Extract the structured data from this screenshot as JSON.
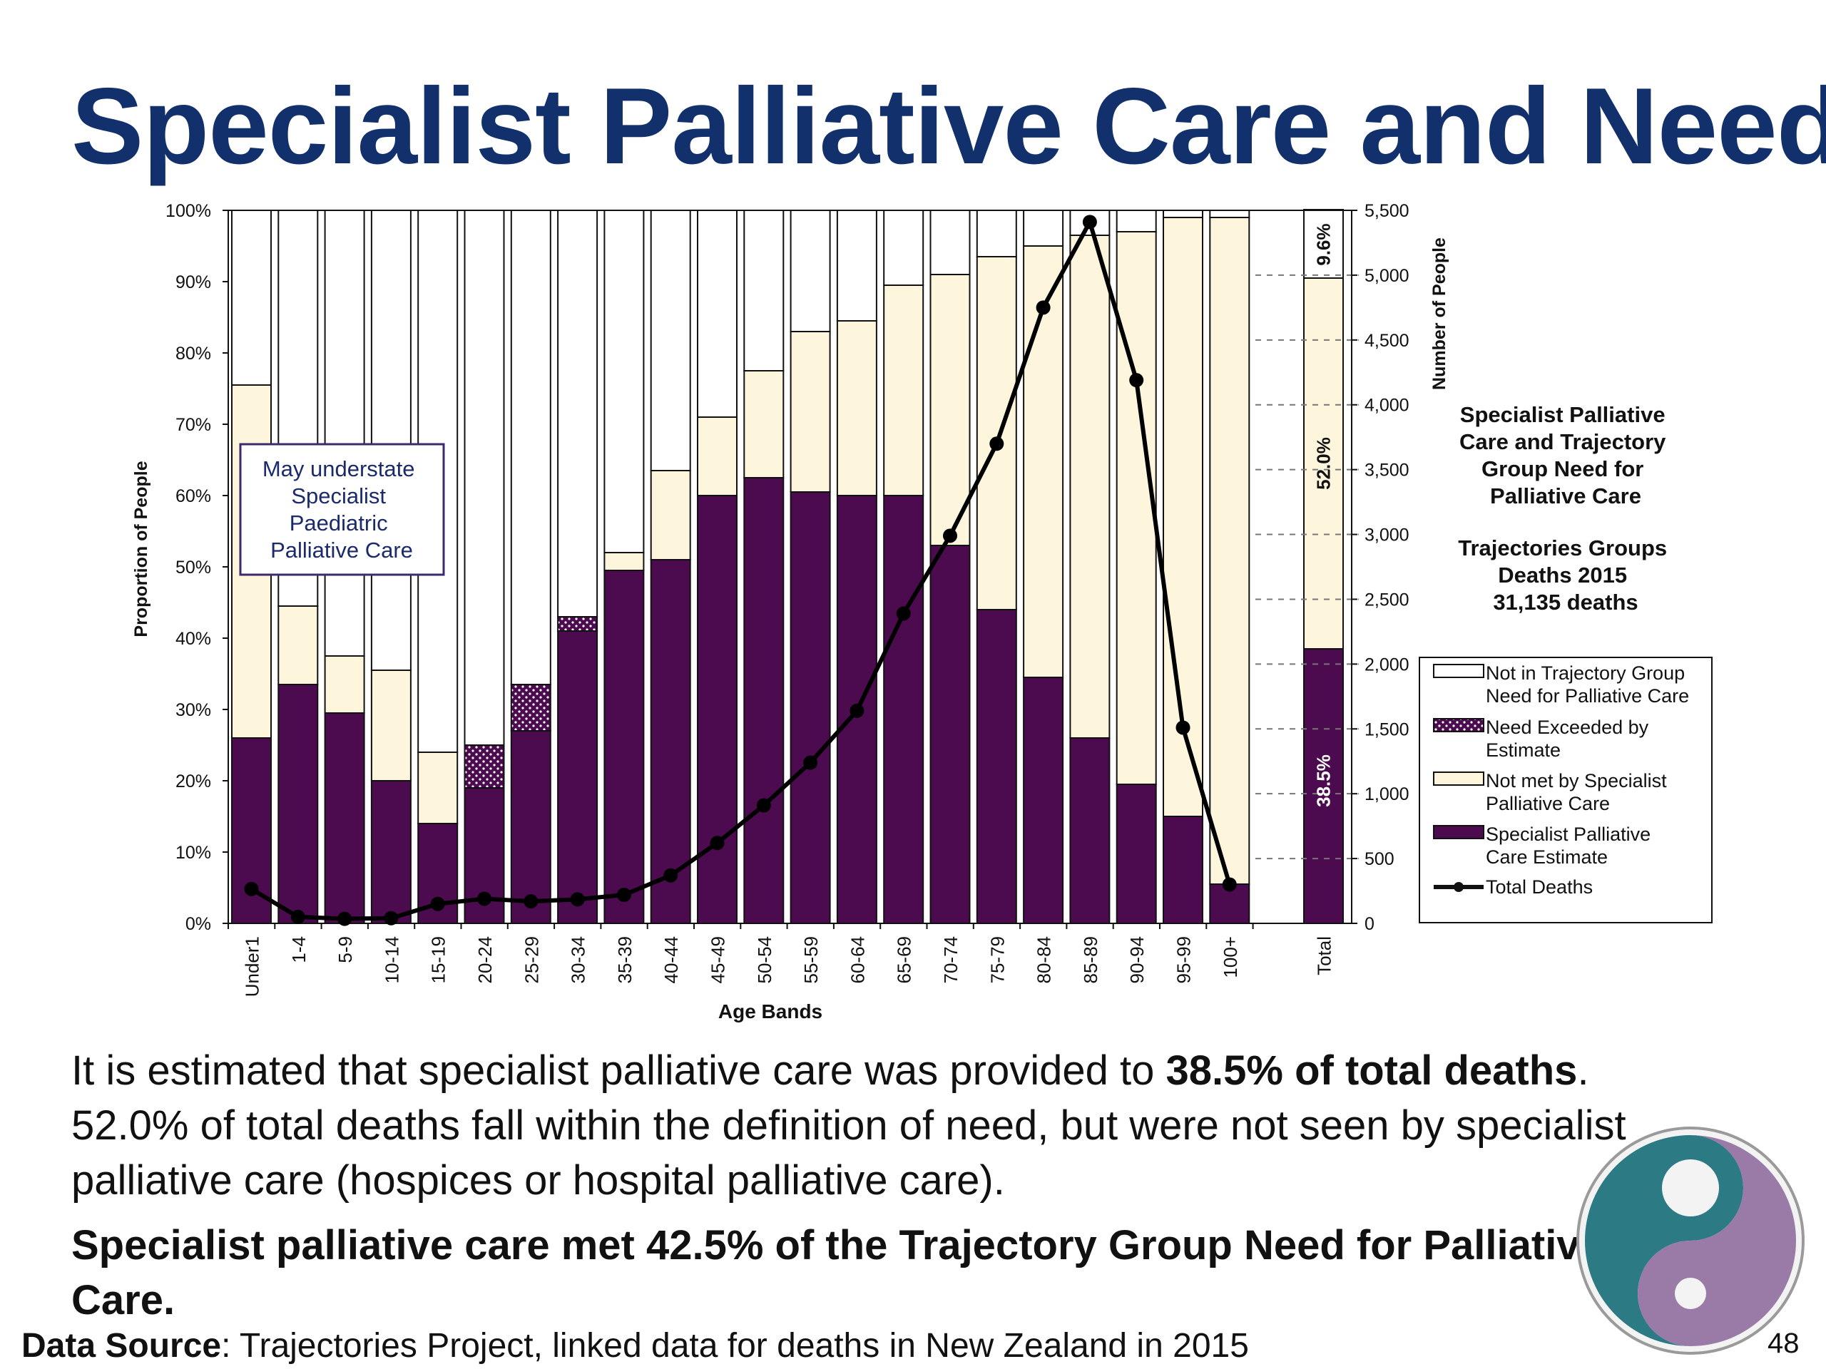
{
  "slide": {
    "title": "Specialist Palliative Care and Need",
    "para1_a": "It is estimated that specialist palliative care was provided to ",
    "para1_b": "38.5% of total deaths",
    "para1_c": ". 52.0% of total deaths fall within the definition of need, but were not seen by specialist palliative care (hospices or hospital palliative care).",
    "para2_a": "Specialist palliative care met 42.5% of the Trajectory Group Need for Palliative Care",
    "para2_b": ".",
    "source_label": "Data Source",
    "source_text": ": Trajectories Project, linked data for deaths in New Zealand in 2015",
    "page_number": "48"
  },
  "chart_data": {
    "type": "bar",
    "stacked": true,
    "xlabel": "Age Bands",
    "ylabel": "Proportion of People",
    "y2label": "Number of People",
    "ylim": [
      0,
      100
    ],
    "y2lim": [
      0,
      5500
    ],
    "yticks": [
      "0%",
      "10%",
      "20%",
      "30%",
      "40%",
      "50%",
      "60%",
      "70%",
      "80%",
      "90%",
      "100%"
    ],
    "y2ticks": [
      "0",
      "500",
      "1,000",
      "1,500",
      "2,000",
      "2,500",
      "3,000",
      "3,500",
      "4,000",
      "4,500",
      "5,000",
      "5,500"
    ],
    "categories": [
      "Under1",
      "1-4",
      "5-9",
      "10-14",
      "15-19",
      "20-24",
      "25-29",
      "30-34",
      "35-39",
      "40-44",
      "45-49",
      "50-54",
      "55-59",
      "60-64",
      "65-69",
      "70-74",
      "75-79",
      "80-84",
      "85-89",
      "90-94",
      "95-99",
      "100+"
    ],
    "total_category": "Total",
    "series": [
      {
        "name": "Specialist Palliative Care Estimate",
        "color": "#4b0b4e",
        "values": [
          26,
          33.5,
          29.5,
          20,
          14,
          19,
          27,
          41,
          49.5,
          51,
          60,
          62.5,
          60.5,
          60,
          60,
          53,
          44,
          34.5,
          26,
          19.5,
          15,
          5.5
        ],
        "total": 38.5
      },
      {
        "name": "Need Exceeded by Estimate",
        "color": "#4b0b4e",
        "values": [
          0,
          0,
          0,
          0,
          0,
          6,
          6.5,
          2,
          0,
          0,
          0,
          0,
          0,
          0,
          0,
          0,
          0,
          0,
          0,
          0,
          0,
          0
        ],
        "total": 0
      },
      {
        "name": "Not met by Specialist Palliative Care",
        "color": "#fdf6dd",
        "values": [
          49.5,
          11,
          8,
          15.5,
          10,
          0,
          0,
          0,
          2.5,
          12.5,
          11,
          15,
          22.5,
          24.5,
          29.5,
          38,
          49.5,
          60.5,
          70.5,
          77.5,
          84,
          93.5
        ],
        "total": 52.0
      },
      {
        "name": "Not in Trajectory Group Need for Palliative Care",
        "color": "#ffffff",
        "values": [
          24.5,
          55.5,
          62.5,
          64.5,
          76,
          75,
          66.5,
          57,
          48,
          36.5,
          29,
          22.5,
          17,
          15.5,
          10.5,
          9,
          6.5,
          5,
          3.5,
          3,
          1,
          1
        ],
        "total": 9.6
      }
    ],
    "line_series": {
      "name": "Total Deaths",
      "axis": "right",
      "values": [
        265,
        50,
        35,
        40,
        150,
        190,
        170,
        185,
        220,
        370,
        620,
        910,
        1240,
        1640,
        2390,
        2990,
        3700,
        4750,
        5410,
        4190,
        1510,
        300
      ]
    },
    "total_labels": [
      "9.6%",
      "52.0%",
      "38.5%"
    ],
    "annotation": "May understate Specialist Paediatric Palliative Care",
    "side_title": "Specialist Palliative Care and Trajectory Group Need for Palliative Care",
    "side_subtitle": "Trajectories Groups Deaths 2015 31,135 deaths",
    "legend_position": "right",
    "legend": [
      "Not in Trajectory Group Need for Palliative Care",
      "Need Exceeded by Estimate",
      "Not met by Specialist Palliative Care",
      "Specialist Palliative Care Estimate",
      "Total Deaths"
    ],
    "colors": {
      "spc": "#4b0b4e",
      "not_met": "#fdf6dd",
      "not_in": "#ffffff",
      "line": "#000000",
      "title": "#12306b"
    },
    "grid": false
  }
}
